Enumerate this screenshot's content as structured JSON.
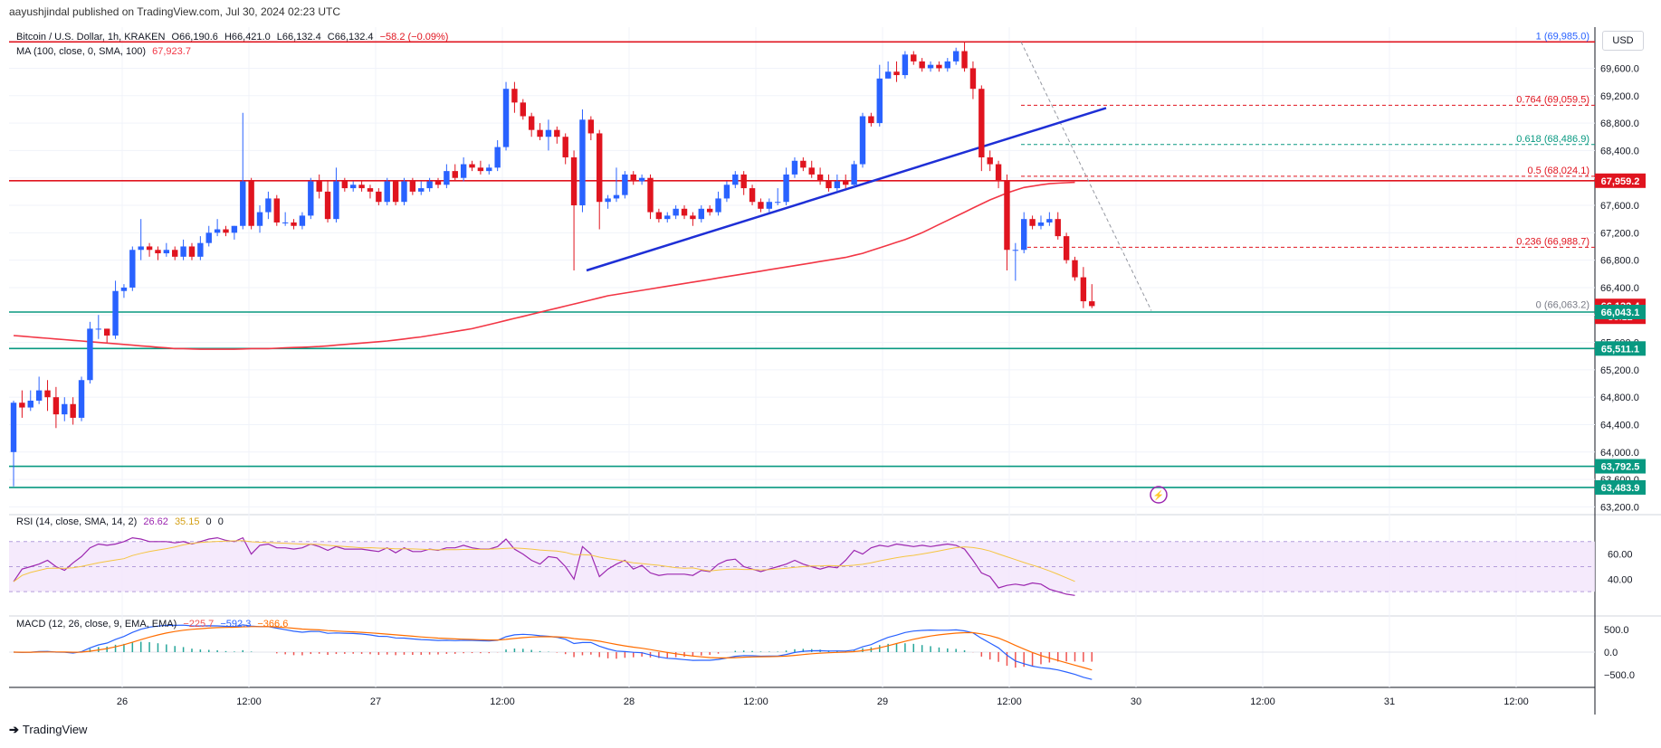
{
  "header": {
    "text": "aayushjindal published on TradingView.com, Jul 30, 2024 02:23 UTC"
  },
  "symbol_legend": {
    "title": "Bitcoin / U.S. Dollar, 1h, KRAKEN",
    "open": "O66,190.6",
    "high": "H66,421.0",
    "low": "L66,132.4",
    "close": "C66,132.4",
    "change": "−58.2 (−0.09%)"
  },
  "ma_legend": {
    "label": "MA (100, close, 0, SMA, 100)",
    "value": "67,923.7"
  },
  "rsi_legend": {
    "label": "RSI (14, close, SMA, 14, 2)",
    "value1": "26.62",
    "value2": "35.15",
    "value3": "0",
    "value4": "0"
  },
  "macd_legend": {
    "label": "MACD (12, 26, close, 9, EMA, EMA)",
    "value1": "−225.7",
    "value2": "−592.3",
    "value3": "−366.6"
  },
  "currency_button": "USD",
  "logo_text": "TradingView",
  "colors": {
    "up": "#2962ff",
    "down": "#e0141f",
    "ma": "#f23645",
    "trend": "#1e2fd6",
    "support": "#089981",
    "resistance": "#e0141f",
    "rsi_line": "#9c27b0",
    "rsi_sma": "#f5c542",
    "macd_line": "#2962ff",
    "signal_line": "#ff6d00",
    "hist_pos": "#26a69a",
    "hist_neg": "#ef5350",
    "fib_green": "#089981",
    "fib_blue": "#2962ff"
  },
  "chart_data": {
    "type": "candlestick",
    "title": "Bitcoin / U.S. Dollar, 1h, KRAKEN",
    "price_ticks": [
      "69,600.0",
      "69,200.0",
      "68,800.0",
      "68,400.0",
      "68,000.0",
      "67,600.0",
      "67,200.0",
      "66,800.0",
      "66,400.0",
      "66,000.0",
      "65,600.0",
      "65,200.0",
      "64,800.0",
      "64,400.0",
      "64,000.0",
      "63,600.0",
      "63,200.0"
    ],
    "price_range": [
      63100,
      70200
    ],
    "x_ticks": [
      "26",
      "12:00",
      "27",
      "12:00",
      "28",
      "12:00",
      "29",
      "12:00",
      "30",
      "12:00",
      "31",
      "12:00"
    ],
    "fib_levels": [
      {
        "label": "1 (69,985.0)",
        "value": 69985
      },
      {
        "label": "0.764 (69,059.5)",
        "value": 69059.5
      },
      {
        "label": "0.618 (68,486.9)",
        "value": 68486.9
      },
      {
        "label": "0.5 (68,024.1)",
        "value": 68024.1
      },
      {
        "label": "0.236 (66,988.7)",
        "value": 66988.7
      },
      {
        "label": "0 (66,063.2)",
        "value": 66063.2
      }
    ],
    "price_badges": [
      {
        "text": "67,959.2",
        "value": 67959.2,
        "color": "#e0141f"
      },
      {
        "text": "66,132.4",
        "value": 66132.4,
        "color": "#e0141f",
        "sub": "36:12"
      },
      {
        "text": "66,043.1",
        "value": 66043.1,
        "color": "#089981"
      },
      {
        "text": "65,511.1",
        "value": 65511.1,
        "color": "#089981"
      },
      {
        "text": "63,792.5",
        "value": 63792.5,
        "color": "#089981"
      },
      {
        "text": "63,483.9",
        "value": 63483.9,
        "color": "#089981"
      }
    ],
    "horizontal_lines": [
      {
        "value": 69985,
        "color": "#e0141f"
      },
      {
        "value": 67959.2,
        "color": "#e0141f"
      },
      {
        "value": 66043.1,
        "color": "#089981"
      },
      {
        "value": 65511.1,
        "color": "#089981"
      },
      {
        "value": 63792.5,
        "color": "#089981"
      },
      {
        "value": 63483.9,
        "color": "#089981"
      }
    ],
    "candles": [
      [
        64000,
        64720,
        63500,
        64750
      ],
      [
        64720,
        64650,
        64500,
        64900
      ],
      [
        64650,
        64750,
        64600,
        64900
      ],
      [
        64750,
        64900,
        64700,
        65100
      ],
      [
        64900,
        64800,
        64600,
        65050
      ],
      [
        64800,
        64550,
        64350,
        64950
      ],
      [
        64550,
        64700,
        64450,
        64800
      ],
      [
        64700,
        64500,
        64400,
        64800
      ],
      [
        64500,
        65050,
        64450,
        65100
      ],
      [
        65050,
        65800,
        65000,
        65900
      ],
      [
        65800,
        65800,
        65650,
        66000
      ],
      [
        65800,
        65700,
        65600,
        65800
      ],
      [
        65700,
        66350,
        65650,
        66500
      ],
      [
        66350,
        66400,
        66250,
        66450
      ],
      [
        66400,
        66950,
        66350,
        67000
      ],
      [
        66950,
        67000,
        66800,
        67400
      ],
      [
        67000,
        66950,
        66850,
        67050
      ],
      [
        66950,
        66900,
        66800,
        67000
      ],
      [
        66900,
        66950,
        66850,
        67050
      ],
      [
        66950,
        66850,
        66800,
        67000
      ],
      [
        66850,
        67000,
        66800,
        67100
      ],
      [
        67000,
        66850,
        66800,
        67050
      ],
      [
        66850,
        67050,
        66800,
        67150
      ],
      [
        67050,
        67200,
        67000,
        67300
      ],
      [
        67200,
        67250,
        67150,
        67400
      ],
      [
        67250,
        67200,
        67150,
        67300
      ],
      [
        67200,
        67300,
        67100,
        67300
      ],
      [
        67300,
        67950,
        67250,
        68950
      ],
      [
        67950,
        67300,
        67250,
        68000
      ],
      [
        67300,
        67500,
        67200,
        67600
      ],
      [
        67500,
        67700,
        67400,
        67800
      ],
      [
        67700,
        67350,
        67300,
        67750
      ],
      [
        67350,
        67350,
        67300,
        67500
      ],
      [
        67350,
        67300,
        67250,
        67400
      ],
      [
        67300,
        67450,
        67250,
        67500
      ],
      [
        67450,
        67950,
        67400,
        68000
      ],
      [
        67950,
        67800,
        67700,
        68050
      ],
      [
        67800,
        67400,
        67350,
        67950
      ],
      [
        67400,
        67950,
        67350,
        68150
      ],
      [
        67950,
        67850,
        67800,
        68000
      ],
      [
        67850,
        67900,
        67800,
        67950
      ],
      [
        67900,
        67850,
        67800,
        67950
      ],
      [
        67850,
        67800,
        67700,
        67900
      ],
      [
        67800,
        67650,
        67600,
        67850
      ],
      [
        67650,
        67950,
        67600,
        68000
      ],
      [
        67950,
        67650,
        67600,
        67950
      ],
      [
        67650,
        67950,
        67600,
        68000
      ],
      [
        67950,
        67800,
        67750,
        68000
      ],
      [
        67800,
        67850,
        67750,
        67950
      ],
      [
        67850,
        67950,
        67800,
        68000
      ],
      [
        67950,
        67900,
        67850,
        68000
      ],
      [
        67900,
        68100,
        67850,
        68200
      ],
      [
        68100,
        68000,
        67950,
        68200
      ],
      [
        68000,
        68200,
        67950,
        68300
      ],
      [
        68200,
        68150,
        68100,
        68250
      ],
      [
        68150,
        68100,
        68050,
        68250
      ],
      [
        68100,
        68150,
        68050,
        68200
      ],
      [
        68150,
        68450,
        68100,
        68550
      ],
      [
        68450,
        69300,
        68400,
        69400
      ],
      [
        69300,
        69100,
        68950,
        69400
      ],
      [
        69100,
        68900,
        68850,
        69150
      ],
      [
        68900,
        68700,
        68600,
        68950
      ],
      [
        68700,
        68600,
        68550,
        68800
      ],
      [
        68600,
        68700,
        68400,
        68850
      ],
      [
        68700,
        68600,
        68500,
        68750
      ],
      [
        68600,
        68300,
        68200,
        68650
      ],
      [
        68300,
        67600,
        66650,
        68400
      ],
      [
        67600,
        68850,
        67500,
        69000
      ],
      [
        68850,
        68650,
        68550,
        68900
      ],
      [
        68650,
        67650,
        67250,
        68700
      ],
      [
        67650,
        67700,
        67550,
        67750
      ],
      [
        67700,
        67750,
        67650,
        68150
      ],
      [
        67750,
        68050,
        67700,
        68100
      ],
      [
        68050,
        67950,
        67900,
        68100
      ],
      [
        67950,
        68000,
        67900,
        68050
      ],
      [
        68000,
        67500,
        67400,
        68050
      ],
      [
        67500,
        67400,
        67350,
        67550
      ],
      [
        67400,
        67450,
        67350,
        67500
      ],
      [
        67450,
        67550,
        67400,
        67600
      ],
      [
        67550,
        67450,
        67400,
        67600
      ],
      [
        67450,
        67400,
        67300,
        67500
      ],
      [
        67400,
        67550,
        67350,
        67600
      ],
      [
        67550,
        67500,
        67450,
        67600
      ],
      [
        67500,
        67700,
        67450,
        67800
      ],
      [
        67700,
        67900,
        67650,
        67950
      ],
      [
        67900,
        68050,
        67850,
        68100
      ],
      [
        68050,
        67850,
        67750,
        68100
      ],
      [
        67850,
        67650,
        67600,
        67900
      ],
      [
        67650,
        67550,
        67500,
        67700
      ],
      [
        67550,
        67650,
        67500,
        67700
      ],
      [
        67650,
        67650,
        67600,
        67850
      ],
      [
        67650,
        68050,
        67600,
        68150
      ],
      [
        68050,
        68250,
        68000,
        68300
      ],
      [
        68250,
        68150,
        68100,
        68300
      ],
      [
        68150,
        68050,
        68000,
        68250
      ],
      [
        68050,
        67950,
        67900,
        68150
      ],
      [
        67950,
        67850,
        67800,
        68050
      ],
      [
        67850,
        67950,
        67800,
        68050
      ],
      [
        67950,
        67900,
        67850,
        68050
      ],
      [
        67900,
        68200,
        67850,
        68250
      ],
      [
        68200,
        68900,
        68150,
        68950
      ],
      [
        68900,
        68800,
        68750,
        68950
      ],
      [
        68800,
        69450,
        68750,
        69650
      ],
      [
        69450,
        69550,
        69450,
        69700
      ],
      [
        69550,
        69500,
        69400,
        69700
      ],
      [
        69500,
        69800,
        69450,
        69850
      ],
      [
        69800,
        69700,
        69650,
        69850
      ],
      [
        69700,
        69600,
        69550,
        69750
      ],
      [
        69600,
        69650,
        69550,
        69700
      ],
      [
        69650,
        69600,
        69550,
        69700
      ],
      [
        69600,
        69700,
        69550,
        69750
      ],
      [
        69700,
        69850,
        69650,
        69900
      ],
      [
        69850,
        69600,
        69550,
        69985
      ],
      [
        69600,
        69300,
        69150,
        69700
      ],
      [
        69300,
        68300,
        68100,
        69350
      ],
      [
        68300,
        68200,
        68100,
        68400
      ],
      [
        68200,
        67950,
        67850,
        68250
      ],
      [
        67950,
        66950,
        66650,
        68050
      ],
      [
        66950,
        66950,
        66500,
        67050
      ],
      [
        66950,
        67400,
        66900,
        67500
      ],
      [
        67400,
        67300,
        67250,
        67450
      ],
      [
        67300,
        67350,
        67250,
        67450
      ],
      [
        67350,
        67400,
        67300,
        67500
      ],
      [
        67400,
        67150,
        67100,
        67500
      ],
      [
        67150,
        66800,
        66750,
        67200
      ],
      [
        66800,
        66550,
        66500,
        66850
      ],
      [
        66550,
        66200,
        66100,
        66700
      ],
      [
        66200,
        66130,
        66100,
        66450
      ]
    ],
    "ma_line": [
      65700,
      65690,
      65680,
      65670,
      65660,
      65650,
      65640,
      65630,
      65620,
      65610,
      65600,
      65590,
      65580,
      65570,
      65560,
      65550,
      65540,
      65530,
      65520,
      65510,
      65510,
      65505,
      65500,
      65500,
      65500,
      65500,
      65500,
      65505,
      65510,
      65510,
      65510,
      65515,
      65520,
      65525,
      65530,
      65535,
      65540,
      65550,
      65560,
      65570,
      65580,
      65590,
      65600,
      65610,
      65620,
      65635,
      65650,
      65665,
      65680,
      65700,
      65720,
      65740,
      65760,
      65780,
      65800,
      65830,
      65860,
      65890,
      65920,
      65950,
      65980,
      66010,
      66040,
      66070,
      66100,
      66130,
      66160,
      66190,
      66220,
      66250,
      66280,
      66300,
      66320,
      66340,
      66360,
      66380,
      66400,
      66420,
      66440,
      66460,
      66480,
      66500,
      66520,
      66540,
      66560,
      66580,
      66600,
      66620,
      66640,
      66660,
      66680,
      66700,
      66720,
      66740,
      66760,
      66780,
      66800,
      66820,
      66840,
      66870,
      66900,
      66940,
      66980,
      67020,
      67060,
      67100,
      67150,
      67200,
      67260,
      67320,
      67380,
      67440,
      67500,
      67560,
      67620,
      67680,
      67730,
      67780,
      67820,
      67860,
      67880,
      67900,
      67915,
      67923,
      67930,
      67935
    ],
    "rsi": [
      38,
      48,
      50,
      52,
      55,
      50,
      47,
      53,
      58,
      65,
      68,
      67,
      68,
      70,
      73,
      72,
      70,
      70,
      70,
      69,
      70,
      68,
      70,
      72,
      73,
      71,
      70,
      73,
      60,
      67,
      68,
      65,
      65,
      64,
      65,
      68,
      66,
      63,
      66,
      64,
      64,
      64,
      63,
      62,
      65,
      61,
      65,
      62,
      62,
      64,
      63,
      65,
      65,
      67,
      65,
      64,
      64,
      66,
      72,
      64,
      60,
      55,
      52,
      58,
      57,
      50,
      40,
      66,
      60,
      42,
      48,
      52,
      55,
      48,
      51,
      45,
      43,
      44,
      44,
      44,
      43,
      47,
      46,
      52,
      55,
      56,
      50,
      48,
      46,
      48,
      50,
      52,
      55,
      52,
      50,
      48,
      50,
      49,
      55,
      63,
      60,
      65,
      67,
      66,
      68,
      67,
      66,
      67,
      66,
      67,
      68,
      67,
      64,
      55,
      45,
      42,
      33,
      35,
      36,
      35,
      37,
      36,
      32,
      30,
      28,
      27
    ]
  }
}
